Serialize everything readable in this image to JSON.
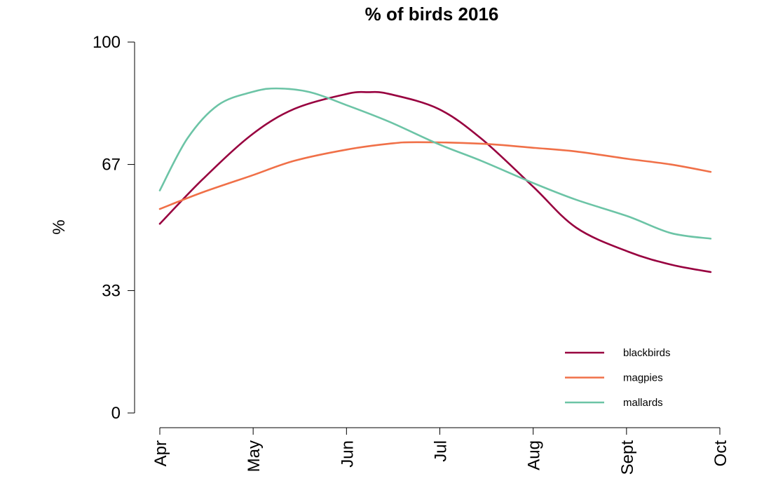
{
  "chart_data": {
    "type": "line",
    "title": "% of birds 2016",
    "xlabel": "",
    "ylabel": "%",
    "ylim": [
      0,
      100
    ],
    "yticks": [
      0,
      33,
      67,
      100
    ],
    "x_ticks": [
      "Apr",
      "May",
      "Jun",
      "Jul",
      "Aug",
      "Sept",
      "Oct"
    ],
    "x_domain": [
      "2016-04-01",
      "2016-10-01"
    ],
    "grid": false,
    "legend_position": "bottom-right",
    "series": [
      {
        "name": "blackbirds",
        "color": "#98003F",
        "points": [
          [
            "2016-04-01",
            51
          ],
          [
            "2016-04-15",
            63
          ],
          [
            "2016-05-01",
            75
          ],
          [
            "2016-05-15",
            82
          ],
          [
            "2016-06-01",
            86
          ],
          [
            "2016-06-08",
            86.5
          ],
          [
            "2016-06-15",
            86
          ],
          [
            "2016-07-01",
            82
          ],
          [
            "2016-07-15",
            74
          ],
          [
            "2016-08-01",
            61
          ],
          [
            "2016-08-15",
            50
          ],
          [
            "2016-09-01",
            43.5
          ],
          [
            "2016-09-15",
            40
          ],
          [
            "2016-09-28",
            38
          ]
        ]
      },
      {
        "name": "magpies",
        "color": "#F07048",
        "points": [
          [
            "2016-04-01",
            55
          ],
          [
            "2016-04-15",
            59.5
          ],
          [
            "2016-05-01",
            64
          ],
          [
            "2016-05-15",
            68
          ],
          [
            "2016-06-01",
            71
          ],
          [
            "2016-06-15",
            72.6
          ],
          [
            "2016-06-24",
            73
          ],
          [
            "2016-07-15",
            72.6
          ],
          [
            "2016-08-01",
            71.5
          ],
          [
            "2016-08-15",
            70.5
          ],
          [
            "2016-09-01",
            68.5
          ],
          [
            "2016-09-15",
            67
          ],
          [
            "2016-09-28",
            65
          ]
        ]
      },
      {
        "name": "mallards",
        "color": "#6CC4A6",
        "points": [
          [
            "2016-04-01",
            60
          ],
          [
            "2016-04-10",
            74
          ],
          [
            "2016-04-20",
            83
          ],
          [
            "2016-05-01",
            86.5
          ],
          [
            "2016-05-09",
            87.5
          ],
          [
            "2016-05-20",
            86.5
          ],
          [
            "2016-06-01",
            83
          ],
          [
            "2016-06-15",
            78.5
          ],
          [
            "2016-07-01",
            72.5
          ],
          [
            "2016-07-15",
            68
          ],
          [
            "2016-08-01",
            62
          ],
          [
            "2016-08-15",
            57.5
          ],
          [
            "2016-09-01",
            53
          ],
          [
            "2016-09-15",
            48.5
          ],
          [
            "2016-09-28",
            47
          ]
        ]
      }
    ]
  }
}
